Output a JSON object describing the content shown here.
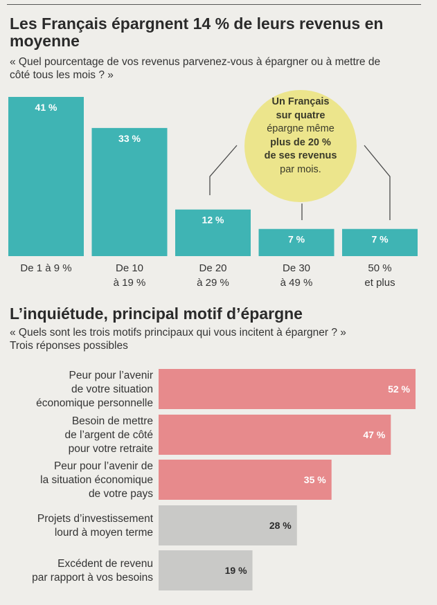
{
  "chart_data": [
    {
      "type": "bar",
      "title": "Les Français épargnent 14 % de leurs revenus en moyenne",
      "subtitle": "« Quel pourcentage de vos revenus parvenez-vous à épargner ou à mettre de côté tous les mois ? »",
      "categories": [
        "De 1 à 9 %",
        "De 10\nà 19 %",
        "De 20\nà 29 %",
        "De 30\nà 49 %",
        "50 %\net plus"
      ],
      "values": [
        41,
        33,
        12,
        7,
        7
      ],
      "value_labels": [
        "41 %",
        "33 %",
        "12 %",
        "7 %",
        "7 %"
      ],
      "ylim": [
        0,
        41
      ],
      "color": "#3fb4b4",
      "annotation": {
        "text_bold": "Un Français\nsur quatre",
        "text_mid": "épargne même",
        "text_bold2": "plus de 20 %\nde ses revenus",
        "text_end": "par mois.",
        "color": "#ece58c"
      }
    },
    {
      "type": "bar",
      "orientation": "horizontal",
      "title": "L’inquiétude, principal motif d’épargne",
      "subtitle": "« Quels sont les trois motifs principaux qui vous incitent à épargner ? »\nTrois réponses possibles",
      "categories": [
        "Peur pour l’avenir\nde votre situation\néconomique personnelle",
        "Besoin de mettre\nde l’argent de côté\npour votre retraite",
        "Peur pour l’avenir de\nla situation économique\nde votre pays",
        "Projets d’investissement\nlourd à moyen terme",
        "Excédent de revenu\npar rapport à vos besoins"
      ],
      "values": [
        52,
        47,
        35,
        28,
        19
      ],
      "value_labels": [
        "52 %",
        "47 %",
        "35 %",
        "28 %",
        "19 %"
      ],
      "xlim": [
        0,
        52
      ],
      "colors": [
        "#e78a8c",
        "#e78a8c",
        "#e78a8c",
        "#c9c9c7",
        "#c9c9c7"
      ],
      "label_colors": [
        "#ffffff",
        "#ffffff",
        "#ffffff",
        "#2b2b2b",
        "#2b2b2b"
      ]
    }
  ]
}
